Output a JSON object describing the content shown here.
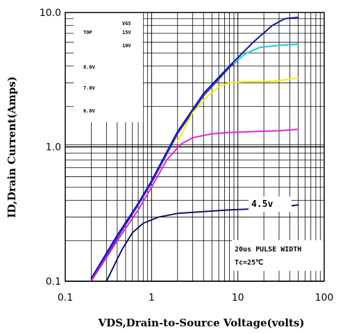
{
  "chart_data": {
    "type": "line",
    "title": "",
    "xlabel": "VDS,Drain-to-Source Voltage(volts)",
    "ylabel": "ID,Drain Current(Amps)",
    "xscale": "log",
    "yscale": "log",
    "xlim": [
      0.1,
      100
    ],
    "ylim": [
      0.1,
      10
    ],
    "grid": true,
    "x_ticks": [
      "0.1",
      "1",
      "10",
      "100"
    ],
    "y_ticks": [
      "0.1",
      "1.0",
      "10.0"
    ],
    "legend": {
      "header": "VGS",
      "rows": [
        {
          "left": "TOP",
          "right": "15V"
        },
        {
          "left": "",
          "right": "10V"
        },
        {
          "left": "8.0V",
          "right": ""
        },
        {
          "left": "7.0V",
          "right": ""
        },
        {
          "left": "6.0V",
          "right": ""
        }
      ]
    },
    "annotations": {
      "curve_label": "4.5v",
      "pulse_note": "20us PULSE WIDTH",
      "temp_note": "Tc=25℃"
    },
    "series": [
      {
        "color": "#1010a0",
        "x": [
          0.2,
          0.4,
          0.7,
          1.0,
          2.0,
          4.0,
          8.0,
          15.0,
          25.0,
          35.0,
          50.0
        ],
        "y": [
          0.105,
          0.22,
          0.38,
          0.56,
          1.3,
          2.5,
          4.0,
          6.0,
          8.0,
          9.0,
          9.2
        ]
      },
      {
        "color": "#3030c8",
        "x": [
          0.2,
          0.4,
          0.7,
          1.0,
          2.0,
          4.0,
          8.0,
          12.0,
          18.0,
          30.0,
          50.0
        ],
        "y": [
          0.1,
          0.21,
          0.37,
          0.54,
          1.25,
          2.4,
          3.9,
          4.9,
          5.5,
          5.7,
          5.8
        ]
      },
      {
        "color": "#20d8e0",
        "x": [
          9.0,
          12.0,
          18.0,
          30.0,
          50.0
        ],
        "y": [
          4.2,
          4.9,
          5.5,
          5.7,
          5.8
        ]
      },
      {
        "color": "#f0f000",
        "x": [
          2.0,
          3.0,
          4.5,
          6.0,
          8.0,
          12.0,
          20.0,
          35.0,
          50.0
        ],
        "y": [
          1.1,
          1.8,
          2.4,
          2.8,
          3.0,
          3.05,
          3.05,
          3.15,
          3.25
        ]
      },
      {
        "color": "#e020e0",
        "x": [
          0.2,
          0.4,
          0.7,
          1.0,
          1.5,
          2.2,
          3.0,
          5.0,
          8.0,
          15.0,
          30.0,
          50.0
        ],
        "y": [
          0.1,
          0.2,
          0.34,
          0.5,
          0.8,
          1.05,
          1.17,
          1.25,
          1.28,
          1.3,
          1.32,
          1.35
        ]
      },
      {
        "color": "#101060",
        "x": [
          0.3,
          0.45,
          0.6,
          0.8,
          1.2,
          2.0,
          4.0,
          8.0,
          15.0,
          30.0,
          50.0
        ],
        "y": [
          0.1,
          0.17,
          0.23,
          0.27,
          0.3,
          0.32,
          0.33,
          0.34,
          0.345,
          0.355,
          0.37
        ]
      }
    ]
  }
}
